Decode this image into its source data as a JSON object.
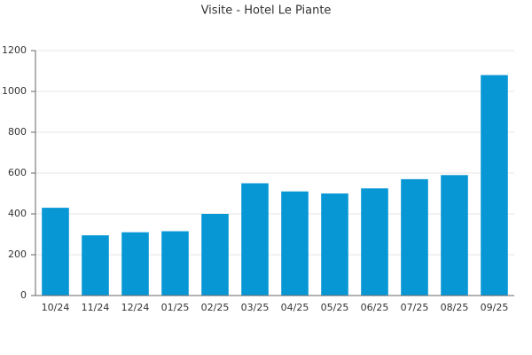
{
  "chart_data": {
    "type": "bar",
    "title": "Visite - Hotel Le Piante",
    "categories": [
      "10/24",
      "11/24",
      "12/24",
      "01/25",
      "02/25",
      "03/25",
      "04/25",
      "05/25",
      "06/25",
      "07/25",
      "08/25",
      "09/25"
    ],
    "values": [
      430,
      295,
      310,
      315,
      400,
      550,
      510,
      500,
      525,
      570,
      590,
      1080
    ],
    "color": "#0797d5",
    "ylim": [
      0,
      1200
    ],
    "yticks": [
      0,
      200,
      400,
      600,
      800,
      1000,
      1200
    ],
    "grid": true
  }
}
